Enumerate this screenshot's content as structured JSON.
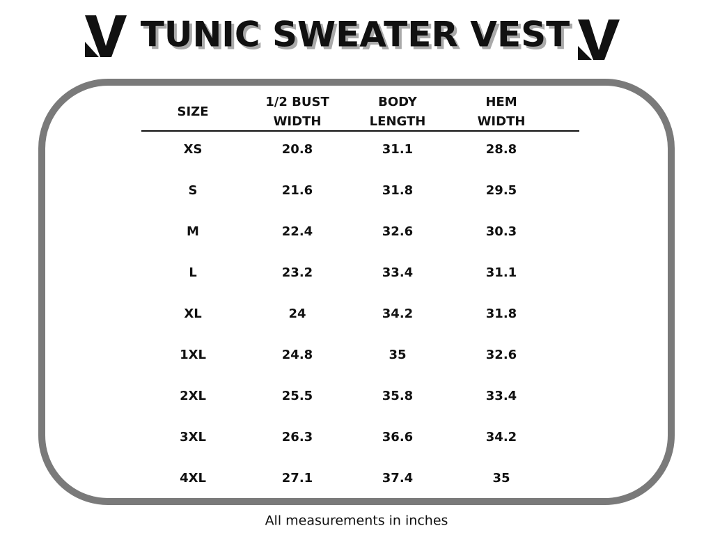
{
  "header": {
    "title": "TUNIC SWEATER VEST"
  },
  "table": {
    "columns": [
      [
        "SIZE"
      ],
      [
        "1/2 BUST",
        "WIDTH"
      ],
      [
        "BODY",
        "LENGTH"
      ],
      [
        "HEM",
        "WIDTH"
      ]
    ],
    "rows": [
      [
        "XS",
        20.8,
        31.1,
        28.8
      ],
      [
        "S",
        21.6,
        31.8,
        29.5
      ],
      [
        "M",
        22.4,
        32.6,
        30.3
      ],
      [
        "L",
        23.2,
        33.4,
        31.1
      ],
      [
        "XL",
        24,
        34.2,
        31.8
      ],
      [
        "1XL",
        24.8,
        35,
        32.6
      ],
      [
        "2XL",
        25.5,
        35.8,
        33.4
      ],
      [
        "3XL",
        26.3,
        36.6,
        34.2
      ],
      [
        "4XL",
        27.1,
        37.4,
        35
      ]
    ]
  },
  "footer": {
    "note": "All measurements in inches"
  }
}
